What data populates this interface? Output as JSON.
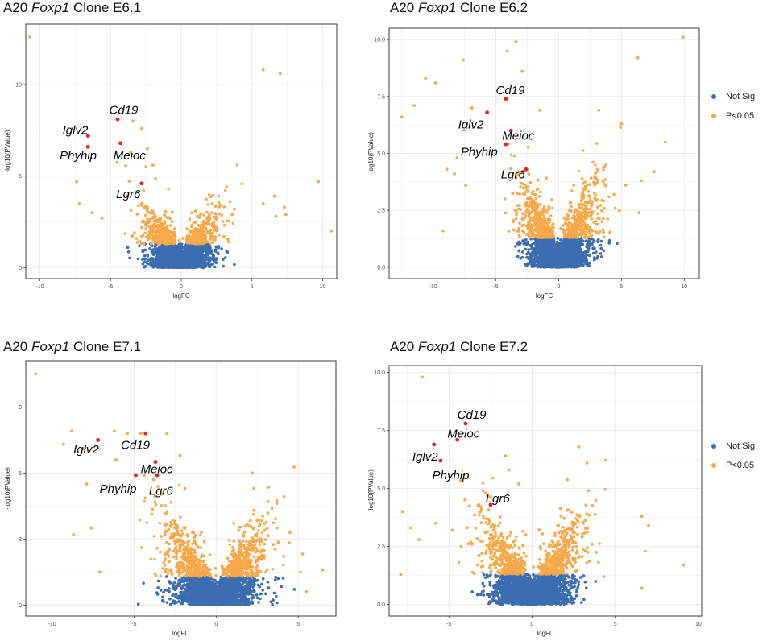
{
  "colors": {
    "not_sig": "#3c6db0",
    "sig": "#f7a84a",
    "highlight": "#e8211f",
    "border": "#3d3d3d",
    "grid": "#ebebeb",
    "text": "#4d4d4d"
  },
  "legend": {
    "items": [
      {
        "label": "Not Sig",
        "color": "#3c6db0"
      },
      {
        "label": "P<0.05",
        "color": "#f7a84a"
      }
    ]
  },
  "chart_data": [
    {
      "type": "scatter",
      "title": {
        "prefix": "A20 ",
        "gene": "Foxp1",
        "suffix": " Clone E6.1"
      },
      "xlabel": "logFC",
      "ylabel": "-log10(PValue)",
      "xlim": [
        -11,
        11
      ],
      "ylim": [
        -0.6,
        13.3
      ],
      "xticks": [
        -10,
        -5,
        0,
        5,
        10
      ],
      "yticks": [
        0,
        5,
        10
      ],
      "ytick_labels": [
        "0",
        "5",
        "10"
      ],
      "sig_threshold": 1.3,
      "spread": {
        "left": 1.25,
        "right": 0.9
      },
      "labeled_genes": [
        {
          "gene": "Cd19",
          "x": -4.5,
          "y": 8.1,
          "label_anchor": [
            -5.1,
            8.4
          ]
        },
        {
          "gene": "Iglv2",
          "x": -6.6,
          "y": 7.2,
          "label_anchor": [
            -8.4,
            7.3
          ]
        },
        {
          "gene": "Phyhip",
          "x": -6.6,
          "y": 6.6,
          "label_anchor": [
            -8.6,
            5.9
          ]
        },
        {
          "gene": "Meioc",
          "x": -4.3,
          "y": 6.8,
          "label_anchor": [
            -4.8,
            5.9
          ]
        },
        {
          "gene": "Lgr6",
          "x": -2.8,
          "y": 4.6,
          "label_anchor": [
            -4.6,
            3.8
          ]
        }
      ],
      "outliers": [
        [
          -10.7,
          12.6
        ],
        [
          5.8,
          10.8
        ],
        [
          7.0,
          10.6
        ],
        [
          -7.4,
          4.7
        ],
        [
          -7.2,
          3.5
        ],
        [
          -6.3,
          3.0
        ],
        [
          -5.6,
          2.7
        ],
        [
          3.6,
          2.9
        ],
        [
          5.8,
          3.5
        ],
        [
          6.6,
          3.9
        ],
        [
          6.7,
          2.8
        ],
        [
          7.4,
          2.9
        ],
        [
          7.3,
          3.3
        ],
        [
          9.7,
          4.7
        ],
        [
          10.6,
          2.0
        ],
        [
          2.3,
          2.5
        ],
        [
          -2.4,
          6.5
        ],
        [
          -2.8,
          7.6
        ],
        [
          -3.4,
          8.0
        ],
        [
          -3.6,
          6.3
        ],
        [
          -2.0,
          5.6
        ],
        [
          -2.5,
          5.5
        ]
      ]
    },
    {
      "type": "scatter",
      "title": {
        "prefix": "A20 ",
        "gene": "Foxp1",
        "suffix": " Clone E6.2"
      },
      "xlabel": "logFC",
      "ylabel": "-log10(PValue)",
      "xlim": [
        -13.5,
        11.2
      ],
      "ylim": [
        -0.5,
        10.5
      ],
      "xticks": [
        -10,
        -5,
        0,
        5,
        10
      ],
      "yticks": [
        0,
        2.5,
        5,
        7.5,
        10
      ],
      "ytick_labels": [
        "0.0",
        "2.5",
        "5.0",
        "7.5",
        "10.0"
      ],
      "sig_threshold": 1.3,
      "spread": {
        "left": 1.5,
        "right": 1.3
      },
      "labeled_genes": [
        {
          "gene": "Cd19",
          "x": -4.2,
          "y": 7.4,
          "label_anchor": [
            -5.0,
            7.6
          ]
        },
        {
          "gene": "Iglv2",
          "x": -5.7,
          "y": 6.8,
          "label_anchor": [
            -8.0,
            6.1
          ]
        },
        {
          "gene": "Meioc",
          "x": -3.8,
          "y": 6.0,
          "label_anchor": [
            -4.5,
            5.6
          ]
        },
        {
          "gene": "Phyhip",
          "x": -4.2,
          "y": 5.4,
          "label_anchor": [
            -7.8,
            4.9
          ]
        },
        {
          "gene": "Lgr6",
          "x": -2.6,
          "y": 4.3,
          "label_anchor": [
            -4.6,
            3.9
          ]
        }
      ],
      "outliers": [
        [
          -12.5,
          6.6
        ],
        [
          -11.5,
          7.1
        ],
        [
          -10.6,
          8.3
        ],
        [
          -9.8,
          8.1
        ],
        [
          -7.6,
          9.1
        ],
        [
          -6.9,
          7.0
        ],
        [
          -4.1,
          9.5
        ],
        [
          -3.4,
          9.9
        ],
        [
          -2.9,
          8.6
        ],
        [
          -1.5,
          6.9
        ],
        [
          -8.9,
          4.3
        ],
        [
          -8.3,
          4.1
        ],
        [
          -7.4,
          3.6
        ],
        [
          -9.2,
          1.6
        ],
        [
          -8.1,
          4.8
        ],
        [
          6.3,
          9.2
        ],
        [
          9.9,
          10.1
        ],
        [
          3.2,
          6.9
        ],
        [
          8.5,
          5.5
        ],
        [
          5.0,
          6.3
        ],
        [
          7.6,
          4.2
        ],
        [
          6.6,
          3.8
        ],
        [
          6.4,
          2.4
        ]
      ]
    },
    {
      "type": "scatter",
      "title": {
        "prefix": "A20 ",
        "gene": "Foxp1",
        "suffix": " Clone E7.1"
      },
      "xlabel": "logFC",
      "ylabel": "-log10(PValue)",
      "xlim": [
        -11.6,
        7.3
      ],
      "ylim": [
        -0.5,
        11.1
      ],
      "xticks": [
        -10,
        -5,
        0,
        5
      ],
      "yticks": [
        0,
        3,
        6,
        9
      ],
      "ytick_labels": [
        "0",
        "3",
        "6",
        "9"
      ],
      "sig_threshold": 1.3,
      "spread": {
        "left": 1.5,
        "right": 1.3
      },
      "labeled_genes": [
        {
          "gene": "Iglv2",
          "x": -7.2,
          "y": 7.5,
          "label_anchor": [
            -8.7,
            6.9
          ]
        },
        {
          "gene": "Cd19",
          "x": -4.3,
          "y": 7.8,
          "label_anchor": [
            -5.8,
            7.1
          ]
        },
        {
          "gene": "Meioc",
          "x": -3.7,
          "y": 6.5,
          "label_anchor": [
            -4.6,
            6.0
          ]
        },
        {
          "gene": "Phyhip",
          "x": -4.9,
          "y": 5.9,
          "label_anchor": [
            -7.1,
            5.1
          ]
        },
        {
          "gene": "Lgr6",
          "x": -3.6,
          "y": 5.9,
          "label_anchor": [
            -4.1,
            5.0
          ]
        }
      ],
      "outliers": [
        [
          -11.0,
          10.5
        ],
        [
          -9.3,
          7.3
        ],
        [
          -8.8,
          7.9
        ],
        [
          -8.1,
          7.1
        ],
        [
          -7.9,
          5.5
        ],
        [
          -8.7,
          3.2
        ],
        [
          -7.6,
          3.5
        ],
        [
          -7.1,
          1.5
        ],
        [
          -6.2,
          7.9
        ],
        [
          -6.1,
          6.6
        ],
        [
          -5.4,
          7.8
        ],
        [
          -4.6,
          7.8
        ],
        [
          -3.0,
          7.8
        ],
        [
          -2.2,
          6.8
        ],
        [
          -1.9,
          5.3
        ],
        [
          2.2,
          6.0
        ],
        [
          2.3,
          5.3
        ],
        [
          6.5,
          1.6
        ],
        [
          5.5,
          0.6
        ],
        [
          4.5,
          3.3
        ],
        [
          3.7,
          3.5
        ]
      ]
    },
    {
      "type": "scatter",
      "title": {
        "prefix": "A20 ",
        "gene": "Foxp1",
        "suffix": " Clone E7.2"
      },
      "xlabel": "logFC",
      "ylabel": "-log10(PValue)",
      "xlim": [
        -8.6,
        10.2
      ],
      "ylim": [
        -0.5,
        10.3
      ],
      "xticks": [
        -5,
        0,
        5,
        10
      ],
      "yticks": [
        0,
        2.5,
        5,
        7.5,
        10
      ],
      "ytick_labels": [
        "0.0",
        "2.5",
        "5.0",
        "7.5",
        "10.0"
      ],
      "sig_threshold": 1.3,
      "spread": {
        "left": 1.4,
        "right": 1.2
      },
      "labeled_genes": [
        {
          "gene": "Cd19",
          "x": -4.0,
          "y": 7.8,
          "label_anchor": [
            -4.5,
            8.0
          ]
        },
        {
          "gene": "Meioc",
          "x": -4.5,
          "y": 7.1,
          "label_anchor": [
            -5.1,
            7.2
          ]
        },
        {
          "gene": "Iglv2",
          "x": -5.9,
          "y": 6.9,
          "label_anchor": [
            -7.2,
            6.2
          ]
        },
        {
          "gene": "Phyhip",
          "x": -5.5,
          "y": 6.2,
          "label_anchor": [
            -6.0,
            5.4
          ]
        },
        {
          "gene": "Lgr6",
          "x": -2.5,
          "y": 4.3,
          "label_anchor": [
            -2.8,
            4.4
          ]
        }
      ],
      "outliers": [
        [
          -6.6,
          9.8
        ],
        [
          -7.8,
          4.0
        ],
        [
          -7.3,
          3.3
        ],
        [
          -6.8,
          2.8
        ],
        [
          -5.8,
          3.5
        ],
        [
          -4.8,
          3.2
        ],
        [
          -4.1,
          5.6
        ],
        [
          -3.6,
          2.6
        ],
        [
          -2.8,
          4.8
        ],
        [
          -1.6,
          6.4
        ],
        [
          -1.4,
          5.8
        ],
        [
          -0.8,
          5.2
        ],
        [
          2.8,
          6.8
        ],
        [
          3.3,
          6.1
        ],
        [
          3.6,
          2.6
        ],
        [
          6.6,
          3.8
        ],
        [
          6.8,
          2.3
        ],
        [
          7.0,
          3.4
        ],
        [
          9.1,
          1.7
        ],
        [
          6.6,
          0.7
        ],
        [
          4.3,
          1.2
        ],
        [
          -7.9,
          1.3
        ],
        [
          -0.4,
          1.5
        ]
      ]
    }
  ]
}
